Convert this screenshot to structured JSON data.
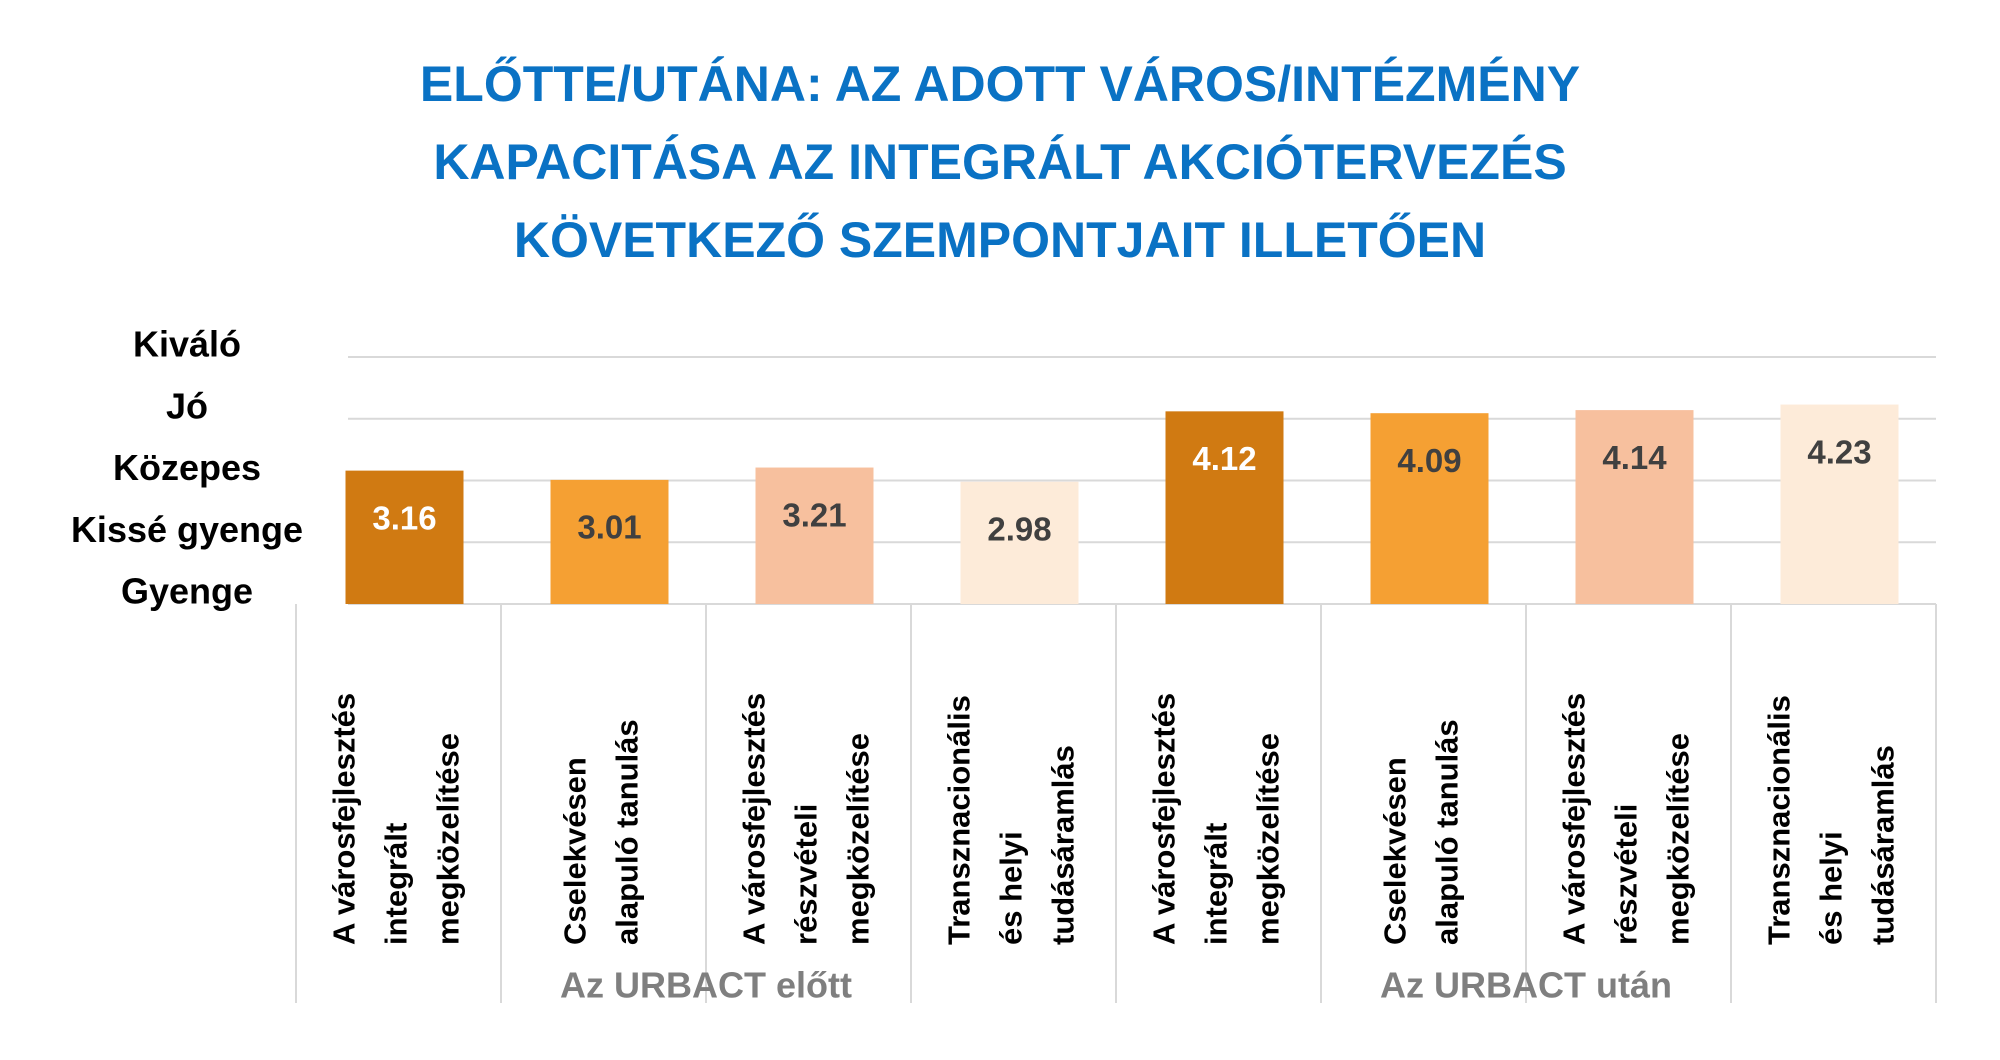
{
  "chart_data": {
    "type": "bar",
    "title": [
      "ELŐTTE/UTÁNA: AZ ADOTT VÁROS/INTÉZMÉNY",
      "KAPACITÁSA AZ INTEGRÁLT AKCIÓTERVEZÉS",
      "KÖVETKEZŐ SZEMPONTJAIT ILLETŐEN"
    ],
    "categories": [
      [
        "A városfejlesztés",
        "integrált",
        "megközelítése"
      ],
      [
        "Cselekvésen",
        "alapuló tanulás"
      ],
      [
        "A városfejlesztés",
        "részvételi",
        "megközelítése"
      ],
      [
        "Transznacionális",
        "és helyi",
        "tudásáramlás"
      ],
      [
        "A városfejlesztés",
        "integrált",
        "megközelítése"
      ],
      [
        "Cselekvésen",
        "alapuló tanulás"
      ],
      [
        "A városfejlesztés",
        "részvételi",
        "megközelítése"
      ],
      [
        "Transznacionális",
        "és helyi",
        "tudásáramlás"
      ]
    ],
    "groups": [
      "Az URBACT előtt",
      "Az URBACT után"
    ],
    "values": [
      3.16,
      3.01,
      3.21,
      2.98,
      4.12,
      4.09,
      4.14,
      4.23
    ],
    "colors": [
      "#d07a12",
      "#f5a033",
      "#f7c09e",
      "#fdebd9",
      "#d07a12",
      "#f5a033",
      "#f7c09e",
      "#fdebd9"
    ],
    "ylim": [
      1,
      5
    ],
    "yticks": [
      {
        "value": 1,
        "label": "Gyenge"
      },
      {
        "value": 2,
        "label": "Kissé gyenge"
      },
      {
        "value": 3,
        "label": "Közepes"
      },
      {
        "value": 4,
        "label": "Jó"
      },
      {
        "value": 5,
        "label": "Kiváló"
      }
    ],
    "grid": true
  }
}
